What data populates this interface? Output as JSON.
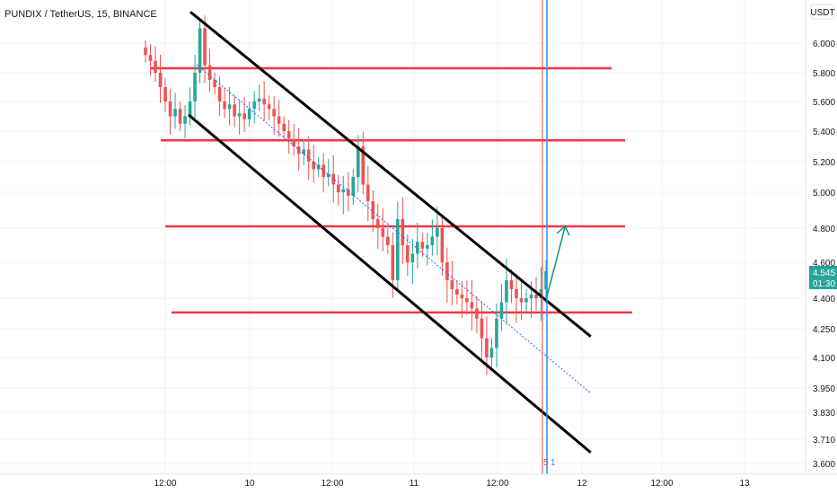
{
  "colors": {
    "up": "#26a69a",
    "down": "#ef5350",
    "channel": "#000000",
    "level": "#f23645",
    "blue_line": "#2196f3",
    "arrow": "#089981",
    "price_tag": "#26a69a",
    "grid": "#f0f3fa",
    "axis_border": "#e0e3eb",
    "midline": "#2962ff"
  },
  "chart_data": {
    "type": "candlestick",
    "title": "PUNDIX / TetherUS, 15, BINANCE",
    "currency_label": "USDT",
    "y_ticks": [
      "6.000",
      "5.800",
      "5.600",
      "5.400",
      "5.200",
      "5.000",
      "4.800",
      "4.600",
      "4.400",
      "4.250",
      "4.100",
      "3.950",
      "3.830",
      "3.710",
      "3.600"
    ],
    "x_ticks": [
      "12:00",
      "10",
      "12:00",
      "11",
      "12:00",
      "12",
      "12:00",
      "13"
    ],
    "current_price": "4.545",
    "countdown": "01:30",
    "session_marker": "5",
    "session_marker_2": "1",
    "horizontal_levels": [
      5.83,
      5.34,
      4.81,
      4.33
    ],
    "channel": {
      "upper": {
        "from": [
          0.0,
          6.21
        ],
        "to": [
          3.55,
          4.21
        ]
      },
      "lower": {
        "from": [
          0.0,
          5.51
        ],
        "to": [
          3.55,
          3.65
        ]
      }
    },
    "close_series": [
      5.92,
      5.88,
      5.8,
      5.7,
      5.6,
      5.5,
      5.55,
      5.45,
      5.5,
      5.6,
      5.8,
      6.1,
      5.85,
      5.75,
      5.7,
      5.6,
      5.55,
      5.58,
      5.5,
      5.52,
      5.48,
      5.55,
      5.6,
      5.62,
      5.58,
      5.55,
      5.5,
      5.45,
      5.4,
      5.35,
      5.3,
      5.25,
      5.28,
      5.2,
      5.15,
      5.18,
      5.1,
      5.12,
      5.05,
      5.0,
      5.02,
      4.98,
      5.1,
      5.3,
      5.05,
      4.95,
      4.85,
      4.8,
      4.75,
      4.7,
      4.5,
      4.85,
      4.7,
      4.6,
      4.65,
      4.72,
      4.68,
      4.7,
      4.75,
      4.8,
      4.6,
      4.5,
      4.45,
      4.42,
      4.4,
      4.38,
      4.35,
      4.3,
      4.2,
      4.1,
      4.15,
      4.3,
      4.38,
      4.5,
      4.45,
      4.4,
      4.38,
      4.4,
      4.42,
      4.4,
      4.45,
      4.55
    ]
  }
}
